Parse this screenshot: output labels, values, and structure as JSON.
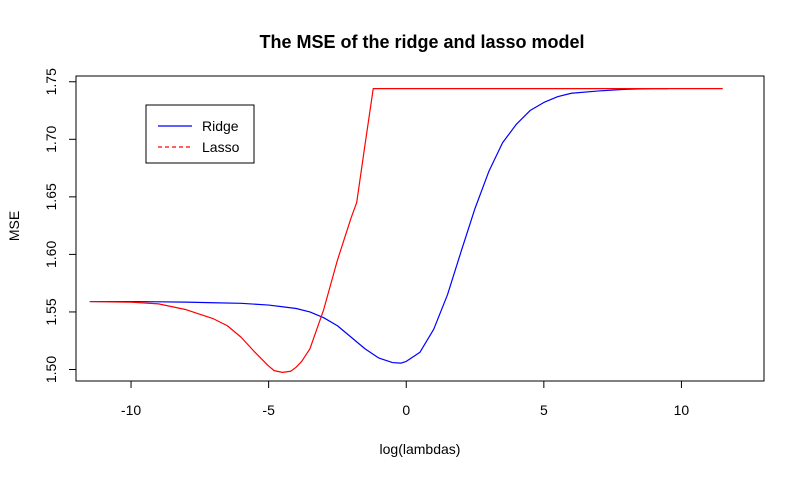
{
  "chart_data": {
    "type": "line",
    "title": "The MSE of the ridge and lasso model",
    "xlabel": "log(lambdas)",
    "ylabel": "MSE",
    "xlim": [
      -12,
      13
    ],
    "ylim": [
      1.49,
      1.755
    ],
    "x_ticks": [
      -10,
      -5,
      0,
      5,
      10
    ],
    "x_tick_labels": [
      "-10",
      "-5",
      "0",
      "5",
      "10"
    ],
    "y_ticks": [
      1.5,
      1.55,
      1.6,
      1.65,
      1.7,
      1.75
    ],
    "y_tick_labels": [
      "1.50",
      "1.55",
      "1.60",
      "1.65",
      "1.70",
      "1.75"
    ],
    "grid": false,
    "legend_position": "top-left",
    "series": [
      {
        "name": "Ridge",
        "color": "#0000ff",
        "dash": "solid",
        "x": [
          -11.5,
          -10,
          -9,
          -8,
          -7,
          -6,
          -5,
          -4.5,
          -4,
          -3.5,
          -3,
          -2.5,
          -2,
          -1.5,
          -1,
          -0.5,
          -0.2,
          0,
          0.5,
          1,
          1.5,
          2,
          2.5,
          3,
          3.5,
          4,
          4.5,
          5,
          5.5,
          6,
          7,
          8,
          9,
          9.5
        ],
        "y": [
          1.559,
          1.559,
          1.5588,
          1.5585,
          1.558,
          1.5575,
          1.556,
          1.5545,
          1.553,
          1.55,
          1.545,
          1.538,
          1.528,
          1.518,
          1.51,
          1.506,
          1.5055,
          1.507,
          1.515,
          1.535,
          1.565,
          1.603,
          1.64,
          1.672,
          1.697,
          1.713,
          1.725,
          1.732,
          1.737,
          1.74,
          1.742,
          1.7435,
          1.744,
          1.744
        ]
      },
      {
        "name": "Lasso",
        "color": "#ff0000",
        "dash": "solid",
        "x": [
          -11.5,
          -10,
          -9,
          -8,
          -7,
          -6.5,
          -6,
          -5.5,
          -5,
          -4.8,
          -4.5,
          -4.2,
          -4,
          -3.8,
          -3.5,
          -3,
          -2.5,
          -2,
          -1.8,
          -1.5,
          -1.2,
          0,
          2,
          5,
          8,
          11.5
        ],
        "y": [
          1.559,
          1.5585,
          1.557,
          1.552,
          1.544,
          1.538,
          1.528,
          1.515,
          1.503,
          1.499,
          1.4975,
          1.4985,
          1.502,
          1.507,
          1.518,
          1.552,
          1.595,
          1.632,
          1.645,
          1.695,
          1.744,
          1.744,
          1.744,
          1.744,
          1.744,
          1.744
        ]
      }
    ]
  }
}
